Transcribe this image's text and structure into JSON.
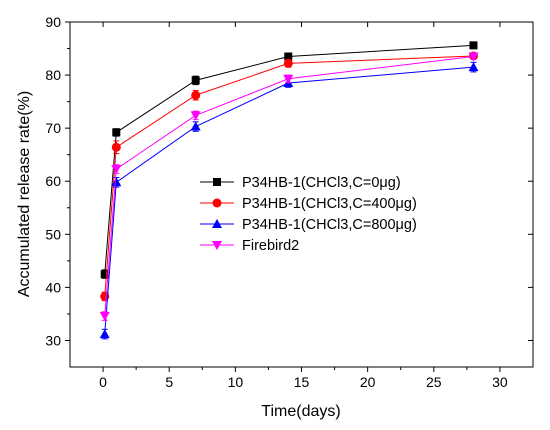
{
  "chart_data": {
    "type": "line",
    "title": "",
    "xlabel": "Time(days)",
    "ylabel": "Accumulated release rate(%)",
    "xlim": [
      -2.5,
      32.5
    ],
    "ylim": [
      25,
      90
    ],
    "xticks": [
      0,
      5,
      10,
      15,
      20,
      25,
      30
    ],
    "yticks": [
      30,
      40,
      50,
      60,
      70,
      80,
      90
    ],
    "grid": false,
    "legend_position": "center-right",
    "x": [
      0.125,
      1,
      7,
      14,
      28
    ],
    "series": [
      {
        "name": "P34HB-1(CHCl3,C=0μg)",
        "color": "#000000",
        "marker": "square",
        "values": [
          42.5,
          69.2,
          79.0,
          83.5,
          85.6
        ],
        "errors": [
          0.8,
          0.7,
          0.8,
          0.5,
          0.5
        ]
      },
      {
        "name": "P34HB-1(CHCl3,C=400μg)",
        "color": "#ff0000",
        "marker": "circle",
        "values": [
          38.3,
          66.4,
          76.2,
          82.2,
          83.6
        ],
        "errors": [
          0.8,
          1.2,
          0.9,
          0.7,
          0.5
        ]
      },
      {
        "name": "P34HB-1(CHCl3,C=800μg)",
        "color": "#0000ff",
        "marker": "triangle-up",
        "values": [
          31.2,
          59.8,
          70.3,
          78.5,
          81.5
        ],
        "errors": [
          0.9,
          0.9,
          0.9,
          0.8,
          0.9
        ]
      },
      {
        "name": "Firebird2",
        "color": "#ff00ff",
        "marker": "triangle-down",
        "values": [
          34.6,
          62.3,
          72.4,
          79.3,
          83.5
        ],
        "errors": [
          0.8,
          0.8,
          0.8,
          0.7,
          0.5
        ]
      }
    ]
  }
}
